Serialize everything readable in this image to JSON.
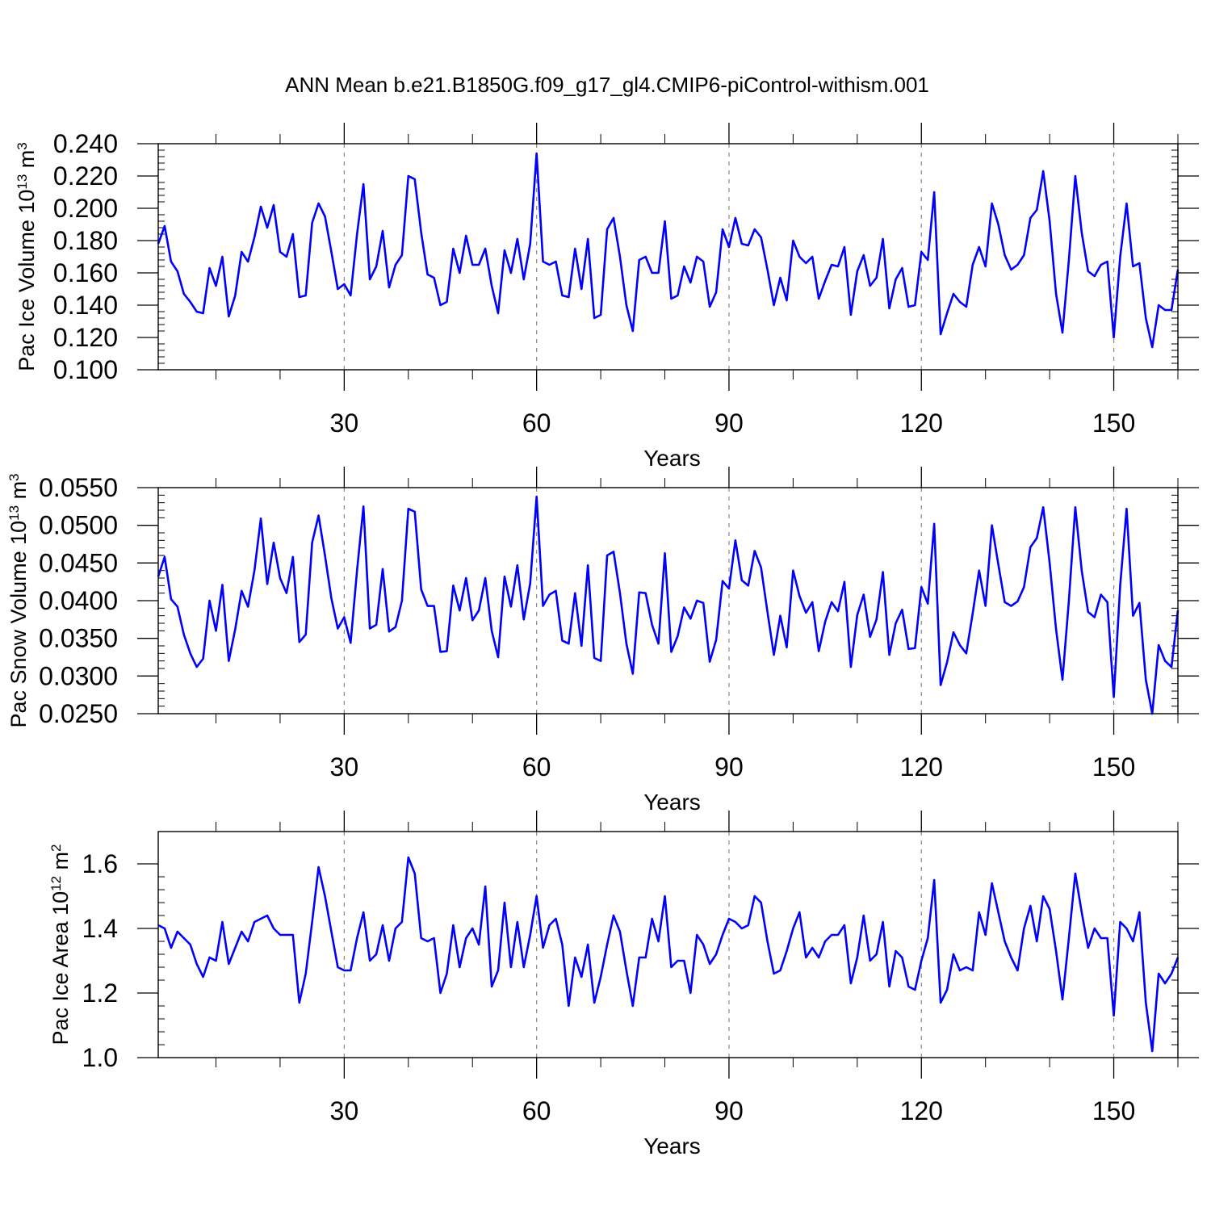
{
  "title": "ANN Mean b.e21.B1850G.f09_g17_gl4.CMIP6-piControl-withism.001",
  "chart_data": [
    {
      "type": "line",
      "xlabel": "Years",
      "ylabel": {
        "pre": "Pac Ice Volume 10",
        "sup": "13",
        "unit": " m",
        "unit_sup": "3"
      },
      "xlim": [
        1,
        160
      ],
      "ylim": [
        0.1,
        0.24
      ],
      "xticks": [
        30,
        60,
        90,
        120,
        150
      ],
      "yticks": [
        0.1,
        0.12,
        0.14,
        0.16,
        0.18,
        0.2,
        0.22,
        0.24
      ],
      "ytick_labels": [
        "0.100",
        "0.120",
        "0.140",
        "0.160",
        "0.180",
        "0.200",
        "0.220",
        "0.240"
      ],
      "grid_x": [
        30,
        60,
        90,
        120,
        150
      ],
      "color": "#0000ff",
      "values": [
        0.178,
        0.189,
        0.167,
        0.161,
        0.147,
        0.142,
        0.136,
        0.135,
        0.163,
        0.152,
        0.17,
        0.133,
        0.146,
        0.173,
        0.167,
        0.182,
        0.201,
        0.188,
        0.202,
        0.173,
        0.17,
        0.184,
        0.145,
        0.146,
        0.191,
        0.203,
        0.195,
        0.173,
        0.15,
        0.153,
        0.146,
        0.184,
        0.215,
        0.156,
        0.164,
        0.186,
        0.151,
        0.165,
        0.171,
        0.22,
        0.218,
        0.185,
        0.159,
        0.157,
        0.14,
        0.142,
        0.175,
        0.16,
        0.183,
        0.165,
        0.165,
        0.175,
        0.152,
        0.135,
        0.174,
        0.16,
        0.181,
        0.156,
        0.178,
        0.234,
        0.167,
        0.165,
        0.167,
        0.146,
        0.145,
        0.175,
        0.15,
        0.181,
        0.132,
        0.134,
        0.187,
        0.194,
        0.17,
        0.14,
        0.124,
        0.168,
        0.17,
        0.16,
        0.16,
        0.192,
        0.144,
        0.146,
        0.164,
        0.154,
        0.17,
        0.167,
        0.139,
        0.148,
        0.187,
        0.176,
        0.194,
        0.178,
        0.177,
        0.187,
        0.182,
        0.162,
        0.14,
        0.157,
        0.143,
        0.18,
        0.17,
        0.166,
        0.17,
        0.144,
        0.155,
        0.165,
        0.164,
        0.176,
        0.134,
        0.161,
        0.171,
        0.152,
        0.157,
        0.181,
        0.138,
        0.156,
        0.163,
        0.139,
        0.14,
        0.173,
        0.168,
        0.21,
        0.122,
        0.135,
        0.147,
        0.142,
        0.139,
        0.165,
        0.176,
        0.164,
        0.203,
        0.19,
        0.171,
        0.162,
        0.165,
        0.171,
        0.194,
        0.199,
        0.223,
        0.192,
        0.147,
        0.123,
        0.168,
        0.22,
        0.185,
        0.161,
        0.158,
        0.165,
        0.167,
        0.12,
        0.17,
        0.203,
        0.164,
        0.166,
        0.132,
        0.114,
        0.14,
        0.137,
        0.137,
        0.162
      ]
    },
    {
      "type": "line",
      "xlabel": "Years",
      "ylabel": {
        "pre": "Pac Snow Volume 10",
        "sup": "13",
        "unit": " m",
        "unit_sup": "3"
      },
      "xlim": [
        1,
        160
      ],
      "ylim": [
        0.025,
        0.055
      ],
      "xticks": [
        30,
        60,
        90,
        120,
        150
      ],
      "yticks": [
        0.025,
        0.03,
        0.035,
        0.04,
        0.045,
        0.05,
        0.055
      ],
      "ytick_labels": [
        "0.0250",
        "0.0300",
        "0.0350",
        "0.0400",
        "0.0450",
        "0.0500",
        "0.0550"
      ],
      "grid_x": [
        30,
        60,
        90,
        120,
        150
      ],
      "color": "#0000ff",
      "values": [
        0.0432,
        0.0458,
        0.0402,
        0.0392,
        0.0355,
        0.033,
        0.0312,
        0.0323,
        0.04,
        0.036,
        0.0421,
        0.032,
        0.0362,
        0.0413,
        0.0392,
        0.044,
        0.0509,
        0.0422,
        0.0477,
        0.043,
        0.041,
        0.0458,
        0.0345,
        0.0355,
        0.0477,
        0.0513,
        0.046,
        0.0403,
        0.0363,
        0.0378,
        0.0344,
        0.044,
        0.0525,
        0.0363,
        0.0368,
        0.0442,
        0.0359,
        0.0365,
        0.04,
        0.0522,
        0.0518,
        0.0415,
        0.0393,
        0.0393,
        0.0332,
        0.0333,
        0.042,
        0.0387,
        0.043,
        0.0374,
        0.0387,
        0.043,
        0.036,
        0.0325,
        0.0432,
        0.0392,
        0.0447,
        0.0375,
        0.0423,
        0.0538,
        0.0393,
        0.0408,
        0.0413,
        0.0347,
        0.0343,
        0.041,
        0.034,
        0.0447,
        0.0324,
        0.032,
        0.046,
        0.0465,
        0.041,
        0.0343,
        0.0303,
        0.0411,
        0.041,
        0.0368,
        0.0343,
        0.0463,
        0.0332,
        0.0353,
        0.0391,
        0.0376,
        0.04,
        0.0397,
        0.0319,
        0.0348,
        0.0426,
        0.0416,
        0.048,
        0.0427,
        0.042,
        0.0466,
        0.0444,
        0.0385,
        0.0328,
        0.038,
        0.0338,
        0.044,
        0.0406,
        0.0384,
        0.0398,
        0.0333,
        0.0372,
        0.0398,
        0.0386,
        0.0425,
        0.0312,
        0.0381,
        0.0408,
        0.0352,
        0.0375,
        0.0438,
        0.0328,
        0.037,
        0.0388,
        0.0336,
        0.0337,
        0.0418,
        0.0396,
        0.0502,
        0.0288,
        0.0318,
        0.0358,
        0.0341,
        0.033,
        0.0383,
        0.044,
        0.0393,
        0.05,
        0.0448,
        0.0398,
        0.0393,
        0.0399,
        0.0418,
        0.0471,
        0.0483,
        0.0524,
        0.045,
        0.0362,
        0.0295,
        0.04,
        0.0524,
        0.044,
        0.0385,
        0.0378,
        0.0408,
        0.0398,
        0.0272,
        0.042,
        0.0522,
        0.038,
        0.0397,
        0.0295,
        0.025,
        0.0341,
        0.032,
        0.0312,
        0.0387
      ]
    },
    {
      "type": "line",
      "xlabel": "Years",
      "ylabel": {
        "pre": "Pac Ice Area 10",
        "sup": "12",
        "unit": " m",
        "unit_sup": "2"
      },
      "xlim": [
        1,
        160
      ],
      "ylim": [
        1.0,
        1.7
      ],
      "xticks": [
        30,
        60,
        90,
        120,
        150
      ],
      "yticks": [
        1.0,
        1.2,
        1.4,
        1.6
      ],
      "ytick_labels": [
        "1.0",
        "1.2",
        "1.4",
        "1.6"
      ],
      "grid_x": [
        30,
        60,
        90,
        120,
        150
      ],
      "color": "#0000ff",
      "values": [
        1.41,
        1.4,
        1.34,
        1.39,
        1.37,
        1.35,
        1.29,
        1.25,
        1.31,
        1.3,
        1.42,
        1.29,
        1.34,
        1.39,
        1.36,
        1.42,
        1.43,
        1.44,
        1.4,
        1.38,
        1.38,
        1.38,
        1.17,
        1.26,
        1.42,
        1.59,
        1.5,
        1.39,
        1.28,
        1.27,
        1.27,
        1.37,
        1.45,
        1.3,
        1.32,
        1.41,
        1.3,
        1.4,
        1.42,
        1.62,
        1.57,
        1.37,
        1.36,
        1.37,
        1.2,
        1.26,
        1.41,
        1.28,
        1.37,
        1.4,
        1.35,
        1.53,
        1.22,
        1.27,
        1.48,
        1.28,
        1.42,
        1.28,
        1.38,
        1.5,
        1.34,
        1.41,
        1.43,
        1.35,
        1.16,
        1.31,
        1.25,
        1.35,
        1.17,
        1.25,
        1.35,
        1.44,
        1.39,
        1.27,
        1.16,
        1.31,
        1.31,
        1.43,
        1.36,
        1.5,
        1.28,
        1.3,
        1.3,
        1.2,
        1.38,
        1.35,
        1.29,
        1.32,
        1.38,
        1.43,
        1.42,
        1.4,
        1.41,
        1.5,
        1.48,
        1.36,
        1.26,
        1.27,
        1.33,
        1.4,
        1.45,
        1.31,
        1.34,
        1.31,
        1.36,
        1.38,
        1.38,
        1.41,
        1.23,
        1.31,
        1.44,
        1.3,
        1.32,
        1.42,
        1.22,
        1.33,
        1.31,
        1.22,
        1.21,
        1.3,
        1.37,
        1.55,
        1.17,
        1.21,
        1.32,
        1.27,
        1.28,
        1.27,
        1.45,
        1.38,
        1.54,
        1.45,
        1.36,
        1.31,
        1.27,
        1.4,
        1.47,
        1.36,
        1.5,
        1.46,
        1.33,
        1.18,
        1.37,
        1.57,
        1.45,
        1.34,
        1.4,
        1.37,
        1.37,
        1.13,
        1.42,
        1.4,
        1.36,
        1.45,
        1.17,
        1.02,
        1.26,
        1.23,
        1.26,
        1.31
      ]
    }
  ]
}
